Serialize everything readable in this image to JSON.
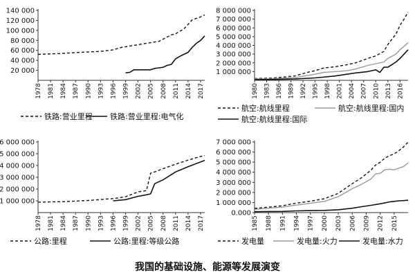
{
  "caption": "我国的基础设施、能源等发展演变",
  "chart_data": [
    {
      "type": "line",
      "title": "",
      "xlabel": "",
      "ylabel": "",
      "ylim": [
        0,
        140000
      ],
      "y_ticks": [
        20000,
        40000,
        60000,
        80000,
        100000,
        120000,
        140000
      ],
      "y_tick_labels": [
        "20 000",
        "40 000",
        "60 000",
        "80 000",
        "100 000",
        "120 000",
        "140 000"
      ],
      "x_ticks": [
        1978,
        1981,
        1984,
        1987,
        1990,
        1993,
        1996,
        1999,
        2002,
        2005,
        2008,
        2011,
        2014,
        2017
      ],
      "xlim": [
        1978,
        2018
      ],
      "series": [
        {
          "name": "铁路:营业里程",
          "style": "dashed",
          "x": [
            1978,
            1983,
            1988,
            1993,
            1996,
            1998,
            2001,
            2004,
            2007,
            2010,
            2011,
            2013,
            2015,
            2017,
            2018
          ],
          "values": [
            52000,
            53500,
            56000,
            58000,
            61000,
            66000,
            70000,
            74000,
            78000,
            91000,
            93000,
            103000,
            121000,
            127000,
            131000
          ]
        },
        {
          "name": "铁路:营业里程:电气化",
          "style": "solid",
          "x": [
            1999,
            2000,
            2001,
            2003,
            2005,
            2006,
            2007,
            2008,
            2009,
            2010,
            2011,
            2012,
            2013,
            2014,
            2015,
            2016,
            2017,
            2018
          ],
          "values": [
            15000,
            16000,
            21000,
            21000,
            21000,
            24000,
            25000,
            26000,
            30000,
            32000,
            43000,
            48000,
            52000,
            56000,
            66000,
            74000,
            80000,
            89000
          ]
        }
      ]
    },
    {
      "type": "line",
      "title": "",
      "xlabel": "",
      "ylabel": "",
      "ylim": [
        0,
        8000000
      ],
      "y_ticks": [
        1000000,
        2000000,
        3000000,
        4000000,
        5000000,
        6000000,
        7000000,
        8000000
      ],
      "y_tick_labels": [
        "1 000 000",
        "2 000 000",
        "3 000 000",
        "4 000 000",
        "5 000 000",
        "6 000 000",
        "7 000 000",
        "8 000 000"
      ],
      "x_ticks": [
        1980,
        1983,
        1986,
        1989,
        1992,
        1995,
        1998,
        2001,
        2004,
        2007,
        2010,
        2013,
        2016
      ],
      "xlim": [
        1980,
        2018
      ],
      "series": [
        {
          "name": "航空:航线里程",
          "style": "dashed",
          "x": [
            1980,
            1985,
            1990,
            1993,
            1995,
            1997,
            2000,
            2003,
            2005,
            2008,
            2010,
            2012,
            2013,
            2015,
            2016,
            2017,
            2018
          ],
          "values": [
            200000,
            280000,
            500000,
            900000,
            1100000,
            1400000,
            1550000,
            1800000,
            2000000,
            2500000,
            2800000,
            3300000,
            4100000,
            5300000,
            6300000,
            7000000,
            7800000
          ]
        },
        {
          "name": "航空:航线里程:国内",
          "style": "solid-gray",
          "x": [
            1980,
            1985,
            1990,
            1993,
            1995,
            1997,
            2000,
            2003,
            2005,
            2008,
            2010,
            2012,
            2013,
            2015,
            2016,
            2017,
            2018
          ],
          "values": [
            150000,
            200000,
            300000,
            550000,
            700000,
            900000,
            1000000,
            1100000,
            1300000,
            1700000,
            1900000,
            2100000,
            2500000,
            3000000,
            3500000,
            3900000,
            4300000
          ]
        },
        {
          "name": "航空:航线里程:国际",
          "style": "solid",
          "x": [
            1980,
            1985,
            1990,
            1995,
            2000,
            2005,
            2008,
            2010,
            2011,
            2012,
            2013,
            2014,
            2015,
            2016,
            2017,
            2018
          ],
          "values": [
            80000,
            100000,
            150000,
            280000,
            500000,
            850000,
            1000000,
            1200000,
            900000,
            1500000,
            1500000,
            1800000,
            2100000,
            2500000,
            3000000,
            3500000
          ]
        }
      ]
    },
    {
      "type": "line",
      "title": "",
      "xlabel": "",
      "ylabel": "",
      "ylim": [
        0,
        6000000
      ],
      "y_ticks": [
        1000000,
        2000000,
        3000000,
        4000000,
        5000000,
        6000000
      ],
      "y_tick_labels": [
        "1 000 000",
        "2 000 000",
        "3 000 000",
        "4 000 000",
        "5 000 000",
        "6 000 000"
      ],
      "x_ticks": [
        1978,
        1981,
        1984,
        1987,
        1990,
        1993,
        1996,
        1999,
        2002,
        2005,
        2008,
        2011,
        2014,
        2017
      ],
      "xlim": [
        1978,
        2018
      ],
      "series": [
        {
          "name": "公路:里程",
          "style": "dashed",
          "x": [
            1978,
            1984,
            1990,
            1996,
            1999,
            2002,
            2004,
            2005,
            2006,
            2008,
            2011,
            2014,
            2017,
            2018
          ],
          "values": [
            890000,
            930000,
            1030000,
            1190000,
            1350000,
            1760000,
            1870000,
            3350000,
            3460000,
            3730000,
            4110000,
            4460000,
            4770000,
            4850000
          ]
        },
        {
          "name": "公路:里程:等级公路",
          "style": "solid",
          "x": [
            1996,
            1999,
            2002,
            2004,
            2005,
            2006,
            2008,
            2011,
            2014,
            2017,
            2018
          ],
          "values": [
            1000000,
            1100000,
            1380000,
            1510000,
            1590000,
            2460000,
            2780000,
            3450000,
            3900000,
            4300000,
            4440000
          ]
        }
      ]
    },
    {
      "type": "line",
      "title": "",
      "xlabel": "",
      "ylabel": "",
      "ylim": [
        0,
        7000000
      ],
      "y_ticks": [
        0,
        1000000,
        2000000,
        3000000,
        4000000,
        5000000,
        6000000,
        7000000
      ],
      "y_tick_labels": [
        "0.000",
        "1 000 000",
        "2 000 000",
        "3 000 000",
        "4 000 000",
        "5 000 000",
        "6 000 000",
        "7 000 000"
      ],
      "x_ticks": [
        1985,
        1988,
        1991,
        1994,
        1997,
        2000,
        2003,
        2006,
        2009,
        2012,
        2015
      ],
      "xlim": [
        1985,
        2018
      ],
      "series": [
        {
          "name": "发电量",
          "style": "dashed",
          "x": [
            1985,
            1988,
            1991,
            1994,
            1997,
            2000,
            2003,
            2006,
            2008,
            2010,
            2011,
            2012,
            2013,
            2014,
            2015,
            2016,
            2017,
            2018
          ],
          "values": [
            410000,
            540000,
            680000,
            930000,
            1130000,
            1370000,
            1910000,
            2870000,
            3450000,
            4200000,
            4700000,
            4990000,
            5400000,
            5640000,
            5810000,
            6130000,
            6500000,
            6990000
          ]
        },
        {
          "name": "发电量:火力",
          "style": "solid-gray",
          "x": [
            1985,
            1988,
            1991,
            1994,
            1997,
            2000,
            2003,
            2006,
            2008,
            2010,
            2011,
            2012,
            2013,
            2014,
            2015,
            2016,
            2017,
            2018
          ],
          "values": [
            320000,
            430000,
            550000,
            740000,
            920000,
            1110000,
            1580000,
            2370000,
            2800000,
            3330000,
            3830000,
            3890000,
            4250000,
            4300000,
            4240000,
            4400000,
            4560000,
            4920000
          ]
        },
        {
          "name": "发电量:水力",
          "style": "solid",
          "x": [
            1985,
            1988,
            1991,
            1994,
            1997,
            2000,
            2003,
            2006,
            2008,
            2010,
            2012,
            2014,
            2015,
            2016,
            2017,
            2018
          ],
          "values": [
            90000,
            110000,
            120000,
            170000,
            200000,
            220000,
            280000,
            430000,
            580000,
            720000,
            870000,
            1060000,
            1110000,
            1170000,
            1190000,
            1230000
          ]
        }
      ]
    }
  ]
}
